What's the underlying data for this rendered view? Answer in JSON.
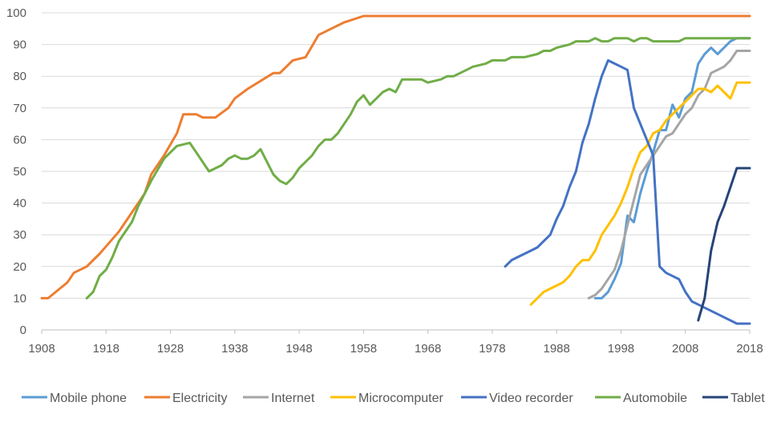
{
  "chart_data": {
    "type": "line",
    "xlim": [
      1908,
      2018
    ],
    "ylim": [
      0,
      100
    ],
    "x_ticks": [
      "1908",
      "1918",
      "1928",
      "1938",
      "1948",
      "1958",
      "1968",
      "1978",
      "1988",
      "1998",
      "2008",
      "2018"
    ],
    "y_ticks": [
      "0",
      "10",
      "20",
      "30",
      "40",
      "50",
      "60",
      "70",
      "80",
      "90",
      "100"
    ],
    "grid": "horizontal",
    "legend_position": "bottom",
    "series": [
      {
        "name": "Mobile phone",
        "color": "#5B9BD5",
        "points": [
          [
            1994,
            10
          ],
          [
            1995,
            10
          ],
          [
            1996,
            12
          ],
          [
            1997,
            16
          ],
          [
            1998,
            21
          ],
          [
            1999,
            36
          ],
          [
            2000,
            34
          ],
          [
            2001,
            43
          ],
          [
            2002,
            50
          ],
          [
            2003,
            56
          ],
          [
            2004,
            63
          ],
          [
            2005,
            63
          ],
          [
            2006,
            71
          ],
          [
            2007,
            67
          ],
          [
            2008,
            73
          ],
          [
            2009,
            75
          ],
          [
            2010,
            84
          ],
          [
            2011,
            87
          ],
          [
            2012,
            89
          ],
          [
            2013,
            87
          ],
          [
            2014,
            89
          ],
          [
            2015,
            91
          ],
          [
            2016,
            92
          ],
          [
            2017,
            92
          ],
          [
            2018,
            92
          ]
        ]
      },
      {
        "name": "Electricity",
        "color": "#ED7D31",
        "points": [
          [
            1908,
            10
          ],
          [
            1909,
            10
          ],
          [
            1912,
            15
          ],
          [
            1913,
            18
          ],
          [
            1915,
            20
          ],
          [
            1917,
            24
          ],
          [
            1920,
            31
          ],
          [
            1922,
            37
          ],
          [
            1924,
            43
          ],
          [
            1925,
            49
          ],
          [
            1927,
            55
          ],
          [
            1929,
            62
          ],
          [
            1930,
            68
          ],
          [
            1932,
            68
          ],
          [
            1933,
            67
          ],
          [
            1935,
            67
          ],
          [
            1937,
            70
          ],
          [
            1938,
            73
          ],
          [
            1940,
            76
          ],
          [
            1944,
            81
          ],
          [
            1945,
            81
          ],
          [
            1947,
            85
          ],
          [
            1949,
            86
          ],
          [
            1951,
            93
          ],
          [
            1953,
            95
          ],
          [
            1955,
            97
          ],
          [
            1958,
            99
          ],
          [
            2018,
            99
          ]
        ]
      },
      {
        "name": "Internet",
        "color": "#A5A5A5",
        "points": [
          [
            1993,
            10
          ],
          [
            1994,
            11
          ],
          [
            1995,
            13
          ],
          [
            1996,
            16
          ],
          [
            1997,
            19
          ],
          [
            1998,
            25
          ],
          [
            1999,
            33
          ],
          [
            2000,
            41
          ],
          [
            2001,
            49
          ],
          [
            2002,
            52
          ],
          [
            2003,
            55
          ],
          [
            2004,
            58
          ],
          [
            2005,
            61
          ],
          [
            2006,
            62
          ],
          [
            2007,
            65
          ],
          [
            2008,
            68
          ],
          [
            2009,
            70
          ],
          [
            2010,
            74
          ],
          [
            2011,
            76
          ],
          [
            2012,
            81
          ],
          [
            2013,
            82
          ],
          [
            2014,
            83
          ],
          [
            2015,
            85
          ],
          [
            2016,
            88
          ],
          [
            2017,
            88
          ],
          [
            2018,
            88
          ]
        ]
      },
      {
        "name": "Microcomputer",
        "color": "#FFC000",
        "points": [
          [
            1984,
            8
          ],
          [
            1985,
            10
          ],
          [
            1986,
            12
          ],
          [
            1987,
            13
          ],
          [
            1988,
            14
          ],
          [
            1989,
            15
          ],
          [
            1990,
            17
          ],
          [
            1991,
            20
          ],
          [
            1992,
            22
          ],
          [
            1993,
            22
          ],
          [
            1994,
            25
          ],
          [
            1995,
            30
          ],
          [
            1996,
            33
          ],
          [
            1997,
            36
          ],
          [
            1998,
            40
          ],
          [
            1999,
            45
          ],
          [
            2000,
            51
          ],
          [
            2001,
            56
          ],
          [
            2002,
            58
          ],
          [
            2003,
            62
          ],
          [
            2004,
            63
          ],
          [
            2005,
            66
          ],
          [
            2006,
            68
          ],
          [
            2007,
            70
          ],
          [
            2008,
            72
          ],
          [
            2009,
            74
          ],
          [
            2010,
            76
          ],
          [
            2011,
            76
          ],
          [
            2012,
            75
          ],
          [
            2013,
            77
          ],
          [
            2014,
            75
          ],
          [
            2015,
            73
          ],
          [
            2016,
            78
          ],
          [
            2017,
            78
          ],
          [
            2018,
            78
          ]
        ]
      },
      {
        "name": "Video recorder",
        "color": "#4472C4",
        "points": [
          [
            1980,
            20
          ],
          [
            1981,
            22
          ],
          [
            1982,
            23
          ],
          [
            1983,
            24
          ],
          [
            1984,
            25
          ],
          [
            1985,
            26
          ],
          [
            1986,
            28
          ],
          [
            1987,
            30
          ],
          [
            1988,
            35
          ],
          [
            1989,
            39
          ],
          [
            1990,
            45
          ],
          [
            1991,
            50
          ],
          [
            1992,
            59
          ],
          [
            1993,
            65
          ],
          [
            1994,
            73
          ],
          [
            1995,
            80
          ],
          [
            1996,
            85
          ],
          [
            1997,
            84
          ],
          [
            1998,
            83
          ],
          [
            1999,
            82
          ],
          [
            2000,
            70
          ],
          [
            2001,
            65
          ],
          [
            2002,
            60
          ],
          [
            2003,
            55
          ],
          [
            2004,
            20
          ],
          [
            2005,
            18
          ],
          [
            2006,
            17
          ],
          [
            2007,
            16
          ],
          [
            2008,
            12
          ],
          [
            2009,
            9
          ],
          [
            2010,
            8
          ],
          [
            2011,
            7
          ],
          [
            2012,
            6
          ],
          [
            2013,
            5
          ],
          [
            2014,
            4
          ],
          [
            2015,
            3
          ],
          [
            2016,
            2
          ],
          [
            2017,
            2
          ],
          [
            2018,
            2
          ]
        ]
      },
      {
        "name": "Automobile",
        "color": "#70AD47",
        "points": [
          [
            1915,
            10
          ],
          [
            1916,
            12
          ],
          [
            1917,
            17
          ],
          [
            1918,
            19
          ],
          [
            1919,
            23
          ],
          [
            1920,
            28
          ],
          [
            1922,
            34
          ],
          [
            1923,
            39
          ],
          [
            1925,
            47
          ],
          [
            1927,
            54
          ],
          [
            1929,
            58
          ],
          [
            1931,
            59
          ],
          [
            1932,
            56
          ],
          [
            1934,
            50
          ],
          [
            1936,
            52
          ],
          [
            1937,
            54
          ],
          [
            1938,
            55
          ],
          [
            1939,
            54
          ],
          [
            1940,
            54
          ],
          [
            1941,
            55
          ],
          [
            1942,
            57
          ],
          [
            1944,
            49
          ],
          [
            1945,
            47
          ],
          [
            1946,
            46
          ],
          [
            1947,
            48
          ],
          [
            1948,
            51
          ],
          [
            1950,
            55
          ],
          [
            1951,
            58
          ],
          [
            1952,
            60
          ],
          [
            1953,
            60
          ],
          [
            1954,
            62
          ],
          [
            1955,
            65
          ],
          [
            1956,
            68
          ],
          [
            1957,
            72
          ],
          [
            1958,
            74
          ],
          [
            1959,
            71
          ],
          [
            1960,
            73
          ],
          [
            1961,
            75
          ],
          [
            1962,
            76
          ],
          [
            1963,
            75
          ],
          [
            1964,
            79
          ],
          [
            1967,
            79
          ],
          [
            1968,
            78
          ],
          [
            1970,
            79
          ],
          [
            1971,
            80
          ],
          [
            1972,
            80
          ],
          [
            1974,
            82
          ],
          [
            1975,
            83
          ],
          [
            1977,
            84
          ],
          [
            1978,
            85
          ],
          [
            1980,
            85
          ],
          [
            1981,
            86
          ],
          [
            1983,
            86
          ],
          [
            1985,
            87
          ],
          [
            1986,
            88
          ],
          [
            1987,
            88
          ],
          [
            1988,
            89
          ],
          [
            1990,
            90
          ],
          [
            1991,
            91
          ],
          [
            1993,
            91
          ],
          [
            1994,
            92
          ],
          [
            1995,
            91
          ],
          [
            1996,
            91
          ],
          [
            1997,
            92
          ],
          [
            1999,
            92
          ],
          [
            2000,
            91
          ],
          [
            2001,
            92
          ],
          [
            2002,
            92
          ],
          [
            2003,
            91
          ],
          [
            2007,
            91
          ],
          [
            2008,
            92
          ],
          [
            2018,
            92
          ]
        ]
      },
      {
        "name": "Tablet",
        "color": "#264478",
        "points": [
          [
            2010,
            3
          ],
          [
            2011,
            10
          ],
          [
            2012,
            25
          ],
          [
            2013,
            34
          ],
          [
            2014,
            39
          ],
          [
            2015,
            45
          ],
          [
            2016,
            51
          ],
          [
            2017,
            51
          ],
          [
            2018,
            51
          ]
        ]
      }
    ]
  }
}
